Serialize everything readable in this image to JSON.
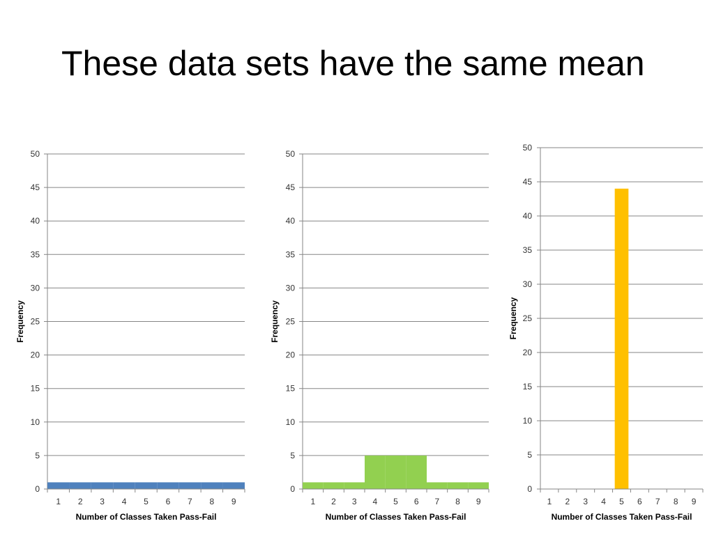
{
  "slide": {
    "title": "These data sets have the same mean"
  },
  "chart_data": [
    {
      "type": "bar",
      "xlabel": "Number of Classes Taken Pass-Fail",
      "ylabel": "Frequency",
      "ylim": [
        0,
        50
      ],
      "yticks": [
        0,
        5,
        10,
        15,
        20,
        25,
        30,
        35,
        40,
        45,
        50
      ],
      "grid": true,
      "categories": [
        "1",
        "2",
        "3",
        "4",
        "5",
        "6",
        "7",
        "8",
        "9"
      ],
      "values": [
        1,
        1,
        1,
        1,
        1,
        1,
        1,
        1,
        1
      ],
      "color": "#4F81BD"
    },
    {
      "type": "bar",
      "xlabel": "Number of Classes Taken Pass-Fail",
      "ylabel": "Frequency",
      "ylim": [
        0,
        50
      ],
      "yticks": [
        0,
        5,
        10,
        15,
        20,
        25,
        30,
        35,
        40,
        45,
        50
      ],
      "grid": true,
      "categories": [
        "1",
        "2",
        "3",
        "4",
        "5",
        "6",
        "7",
        "8",
        "9"
      ],
      "values": [
        1,
        1,
        1,
        5,
        5,
        5,
        1,
        1,
        1
      ],
      "color": "#92D050"
    },
    {
      "type": "bar",
      "xlabel": "Number of Classes Taken Pass-Fail",
      "ylabel": "Frequency",
      "ylim": [
        0,
        50
      ],
      "yticks": [
        0,
        5,
        10,
        15,
        20,
        25,
        30,
        35,
        40,
        45,
        50
      ],
      "grid": true,
      "categories": [
        "1",
        "2",
        "3",
        "4",
        "5",
        "6",
        "7",
        "8",
        "9"
      ],
      "values": [
        0,
        0,
        0,
        0,
        44,
        0,
        0,
        0,
        0
      ],
      "color": "#FFC000"
    }
  ]
}
